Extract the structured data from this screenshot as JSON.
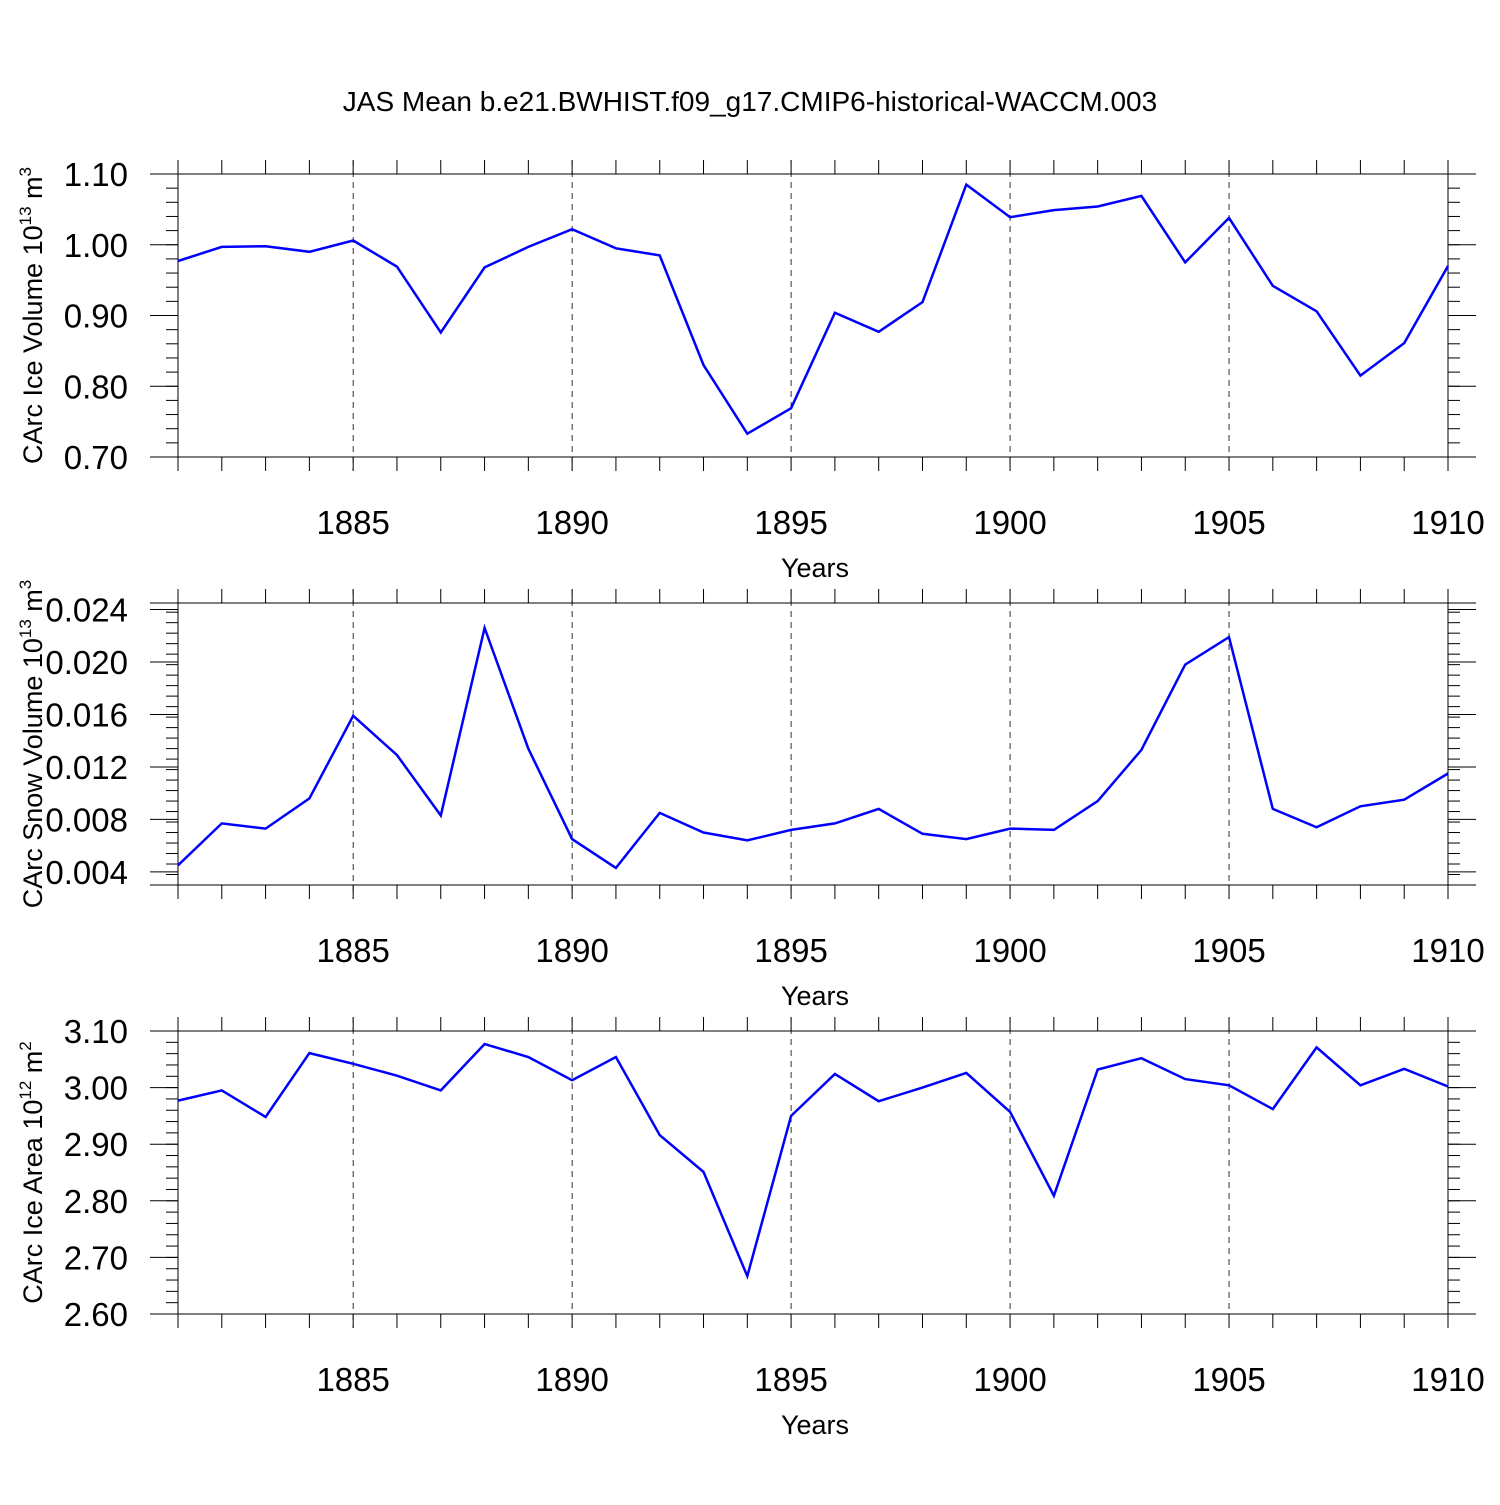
{
  "title": "JAS Mean b.e21.BWHIST.f09_g17.CMIP6-historical-WACCM.003",
  "colors": {
    "line": "#0000ff",
    "axis": "#000000",
    "grid": "#000000"
  },
  "chart_data": [
    {
      "type": "line",
      "ylabel_main": "CArc Ice Volume 10",
      "ylabel_exp": "13",
      "ylabel_unit": " m",
      "ylabel_unit_exp": "3",
      "xlabel": "Years",
      "xlim": [
        1881,
        1910
      ],
      "ylim": [
        0.7,
        1.1
      ],
      "yticks": [
        0.7,
        0.8,
        0.9,
        1.0,
        1.1
      ],
      "ytick_labels": [
        "0.70",
        "0.80",
        "0.90",
        "1.00",
        "1.10"
      ],
      "ytick_minor_step": 0.02,
      "xticks": [
        1885,
        1890,
        1895,
        1900,
        1905,
        1910
      ],
      "xtick_labels": [
        "1885",
        "1890",
        "1895",
        "1900",
        "1905",
        "1910"
      ],
      "grid_x": [
        1885,
        1890,
        1895,
        1900,
        1905
      ],
      "series": [
        {
          "name": "CArc Ice Volume",
          "x": [
            1881,
            1882,
            1883,
            1884,
            1885,
            1886,
            1887,
            1888,
            1889,
            1890,
            1891,
            1892,
            1893,
            1894,
            1895,
            1896,
            1897,
            1898,
            1899,
            1900,
            1901,
            1902,
            1903,
            1904,
            1905,
            1906,
            1907,
            1908,
            1909,
            1910
          ],
          "values": [
            0.977,
            0.997,
            0.998,
            0.99,
            1.006,
            0.969,
            0.876,
            0.968,
            0.997,
            1.022,
            0.995,
            0.985,
            0.83,
            0.733,
            0.769,
            0.904,
            0.877,
            0.919,
            1.085,
            1.039,
            1.049,
            1.054,
            1.069,
            0.975,
            1.038,
            0.942,
            0.906,
            0.815,
            0.861,
            0.97
          ]
        }
      ]
    },
    {
      "type": "line",
      "ylabel_main": "CArc Snow Volume 10",
      "ylabel_exp": "13",
      "ylabel_unit": " m",
      "ylabel_unit_exp": "3",
      "xlabel": "Years",
      "xlim": [
        1881,
        1910
      ],
      "ylim": [
        0.003,
        0.0245
      ],
      "yticks": [
        0.004,
        0.008,
        0.012,
        0.016,
        0.02,
        0.024
      ],
      "ytick_labels": [
        "0.004",
        "0.008",
        "0.012",
        "0.016",
        "0.020",
        "0.024"
      ],
      "ytick_minor_step": 0.0008,
      "xticks": [
        1885,
        1890,
        1895,
        1900,
        1905,
        1910
      ],
      "xtick_labels": [
        "1885",
        "1890",
        "1895",
        "1900",
        "1905",
        "1910"
      ],
      "grid_x": [
        1885,
        1890,
        1895,
        1900,
        1905
      ],
      "series": [
        {
          "name": "CArc Snow Volume",
          "x": [
            1881,
            1882,
            1883,
            1884,
            1885,
            1886,
            1887,
            1888,
            1889,
            1890,
            1891,
            1892,
            1893,
            1894,
            1895,
            1896,
            1897,
            1898,
            1899,
            1900,
            1901,
            1902,
            1903,
            1904,
            1905,
            1906,
            1907,
            1908,
            1909,
            1910
          ],
          "values": [
            0.0045,
            0.0077,
            0.0073,
            0.0096,
            0.0159,
            0.0129,
            0.0083,
            0.0226,
            0.0134,
            0.0065,
            0.0043,
            0.0085,
            0.007,
            0.0064,
            0.0072,
            0.0077,
            0.0088,
            0.0069,
            0.0065,
            0.0073,
            0.0072,
            0.0094,
            0.0133,
            0.0198,
            0.0219,
            0.0088,
            0.0074,
            0.009,
            0.0095,
            0.0115
          ]
        }
      ]
    },
    {
      "type": "line",
      "ylabel_main": "CArc Ice Area 10",
      "ylabel_exp": "12",
      "ylabel_unit": " m",
      "ylabel_unit_exp": "2",
      "xlabel": "Years",
      "xlim": [
        1881,
        1910
      ],
      "ylim": [
        2.6,
        3.1
      ],
      "yticks": [
        2.6,
        2.7,
        2.8,
        2.9,
        3.0,
        3.1
      ],
      "ytick_labels": [
        "2.60",
        "2.70",
        "2.80",
        "2.90",
        "3.00",
        "3.10"
      ],
      "ytick_minor_step": 0.02,
      "xticks": [
        1885,
        1890,
        1895,
        1900,
        1905,
        1910
      ],
      "xtick_labels": [
        "1885",
        "1890",
        "1895",
        "1900",
        "1905",
        "1910"
      ],
      "grid_x": [
        1885,
        1890,
        1895,
        1900,
        1905
      ],
      "series": [
        {
          "name": "CArc Ice Area",
          "x": [
            1881,
            1882,
            1883,
            1884,
            1885,
            1886,
            1887,
            1888,
            1889,
            1890,
            1891,
            1892,
            1893,
            1894,
            1895,
            1896,
            1897,
            1898,
            1899,
            1900,
            1901,
            1902,
            1903,
            1904,
            1905,
            1906,
            1907,
            1908,
            1909,
            1910
          ],
          "values": [
            2.977,
            2.995,
            2.948,
            3.061,
            3.042,
            3.021,
            2.995,
            3.077,
            3.054,
            3.013,
            3.054,
            2.916,
            2.851,
            2.667,
            2.95,
            3.024,
            2.976,
            3.0,
            3.026,
            2.957,
            2.809,
            3.032,
            3.052,
            3.015,
            3.004,
            2.962,
            3.071,
            3.004,
            3.033,
            3.002
          ]
        }
      ]
    }
  ]
}
